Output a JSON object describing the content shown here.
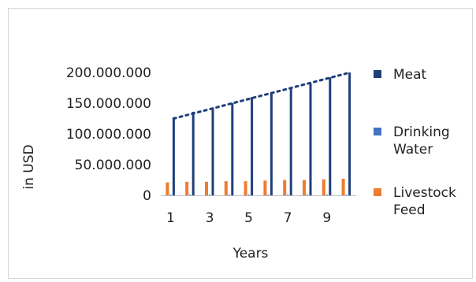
{
  "chart_data": {
    "type": "bar",
    "title": "",
    "xlabel": "Years",
    "ylabel": "in USD",
    "categories": [
      "1",
      "2",
      "3",
      "4",
      "5",
      "6",
      "7",
      "8",
      "9",
      "10"
    ],
    "x_tick_labels": [
      "1",
      "3",
      "5",
      "7",
      "9"
    ],
    "y_tick_labels": [
      "200.000.000",
      "150.000.000",
      "100.000.000",
      "50.000.000",
      "0"
    ],
    "ylim": [
      0,
      200000000
    ],
    "grid": false,
    "legend_position": "right",
    "series": [
      {
        "name": "Meat",
        "color": "#1f3f7a",
        "values": [
          127000000,
          136000000,
          143000000,
          150000000,
          160000000,
          168000000,
          174000000,
          182000000,
          192000000,
          200000000
        ]
      },
      {
        "name": "Drinking Water",
        "color": "#4472c4",
        "values": [
          1000000,
          1000000,
          1000000,
          1000000,
          1000000,
          1000000,
          1000000,
          1000000,
          1000000,
          1000000
        ]
      },
      {
        "name": "Livestock Feed",
        "color": "#ed7d31",
        "values": [
          21000000,
          22000000,
          22000000,
          23000000,
          23000000,
          24000000,
          25000000,
          25000000,
          26000000,
          27000000
        ]
      }
    ],
    "trendline": {
      "series": "Meat",
      "style": "dotted",
      "color": "#1f3f7a",
      "values": [
        125000000,
        133300000,
        141600000,
        149900000,
        158200000,
        166500000,
        174800000,
        183100000,
        191400000,
        199700000
      ]
    },
    "legend": [
      {
        "lines": [
          "Meat"
        ],
        "color": "#1f3f7a"
      },
      {
        "lines": [
          "Drinking",
          "Water"
        ],
        "color": "#4472c4"
      },
      {
        "lines": [
          "Livestock",
          "Feed"
        ],
        "color": "#ed7d31"
      }
    ]
  }
}
